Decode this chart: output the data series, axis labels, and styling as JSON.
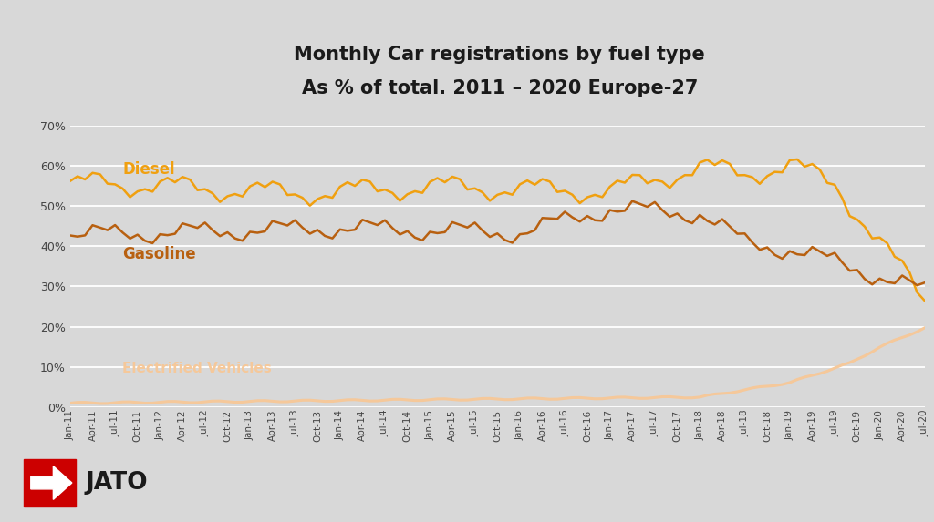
{
  "title_line1": "Monthly Car registrations by fuel type",
  "title_line2": "As % of total. 2011 – 2020 Europe-27",
  "background_color": "#d8d8d8",
  "plot_bg_color": "#d8d8d8",
  "diesel_color": "#f0a010",
  "gasoline_color": "#b86010",
  "ev_color": "#f5c89a",
  "ylim": [
    0.0,
    0.7
  ],
  "yticks": [
    0.0,
    0.1,
    0.2,
    0.3,
    0.4,
    0.5,
    0.6,
    0.7
  ],
  "diesel_label": "Diesel",
  "gasoline_label": "Gasoline",
  "ev_label": "Electrified Vehicles",
  "n_points": 115,
  "xtick_labels": [
    "Jan-11",
    "Apr-11",
    "Jul-11",
    "Oct-11",
    "Jan-12",
    "Apr-12",
    "Jul-12",
    "Oct-12",
    "Jan-13",
    "Apr-13",
    "Jul-13",
    "Oct-13",
    "Jan-14",
    "Apr-14",
    "Jul-14",
    "Oct-14",
    "Jan-15",
    "Apr-15",
    "Jul-15",
    "Oct-15",
    "Jan-16",
    "Apr-16",
    "Jul-16",
    "Oct-16",
    "Jan-17",
    "Apr-17",
    "Jul-17",
    "Oct-17",
    "Jan-18",
    "Apr-18",
    "Jul-18",
    "Oct-18",
    "Jan-19",
    "Apr-19",
    "Jul-19",
    "Oct-19",
    "Jan-20",
    "Apr-20",
    "Jul-20"
  ],
  "xtick_positions": [
    0,
    3,
    6,
    9,
    12,
    15,
    18,
    21,
    24,
    27,
    30,
    33,
    36,
    39,
    42,
    45,
    48,
    51,
    54,
    57,
    60,
    63,
    66,
    69,
    72,
    75,
    78,
    81,
    84,
    87,
    90,
    93,
    96,
    99,
    102,
    105,
    108,
    111,
    114
  ]
}
